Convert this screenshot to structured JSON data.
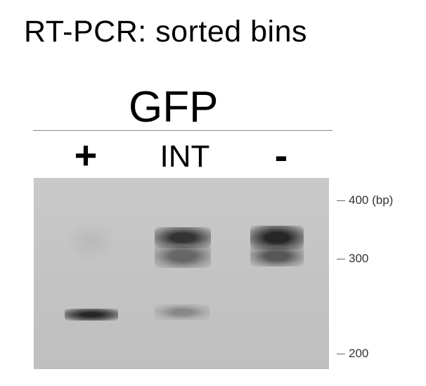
{
  "figure": {
    "title": "RT-PCR: sorted bins",
    "gene_label": "GFP"
  },
  "lanes": [
    {
      "id": "plus",
      "label": "+"
    },
    {
      "id": "int",
      "label": "INT"
    },
    {
      "id": "neg",
      "label": "-"
    }
  ],
  "markers": [
    {
      "label": "400 (bp)"
    },
    {
      "label": "300"
    },
    {
      "label": "200"
    }
  ],
  "colors": {
    "gel_background": "#c4c4c4",
    "band": "#2e2e2e"
  }
}
